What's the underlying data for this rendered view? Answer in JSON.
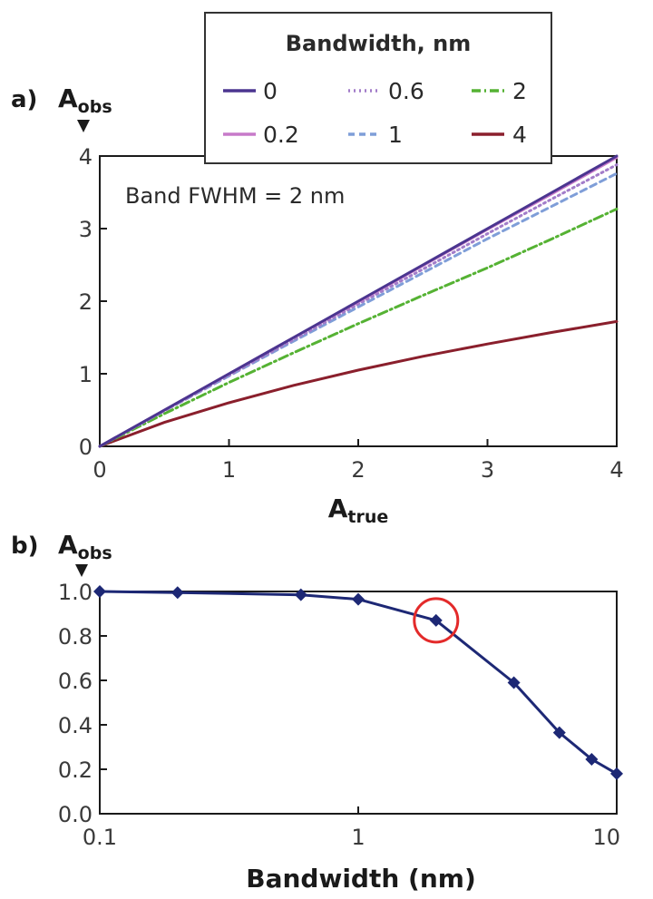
{
  "chart_data": [
    {
      "panel": "a)",
      "type": "line",
      "ylabel_main": "A",
      "ylabel_sub": "obs",
      "xlabel_main": "A",
      "xlabel_sub": "true",
      "xlim": [
        0,
        4
      ],
      "ylim": [
        0,
        4
      ],
      "x_ticks": [
        0,
        1,
        2,
        3,
        4
      ],
      "y_ticks": [
        0,
        1,
        2,
        3,
        4
      ],
      "annotation": "Band FWHM = 2 nm",
      "legend_title": "Bandwidth, nm",
      "grid": false,
      "legend_position": "top-center",
      "x": [
        0,
        0.5,
        1,
        1.5,
        2,
        2.5,
        3,
        3.5,
        4
      ],
      "series": [
        {
          "name": "0",
          "color": "#4b3590",
          "style": "solid",
          "values": [
            0,
            0.5,
            1.0,
            1.5,
            2.0,
            2.5,
            3.0,
            3.5,
            4.0
          ]
        },
        {
          "name": "0.2",
          "color": "#c77ac9",
          "style": "solid",
          "values": [
            0,
            0.5,
            1.0,
            1.5,
            1.99,
            2.49,
            2.99,
            3.48,
            3.98
          ]
        },
        {
          "name": "0.6",
          "color": "#a27cc9",
          "style": "dotted",
          "values": [
            0,
            0.49,
            0.98,
            1.47,
            1.96,
            2.44,
            2.93,
            3.41,
            3.88
          ]
        },
        {
          "name": "1",
          "color": "#7f9ed8",
          "style": "dashed",
          "values": [
            0,
            0.49,
            0.97,
            1.45,
            1.92,
            2.39,
            2.86,
            3.31,
            3.76
          ]
        },
        {
          "name": "2",
          "color": "#55b233",
          "style": "dashdot",
          "values": [
            0,
            0.45,
            0.88,
            1.29,
            1.69,
            2.08,
            2.46,
            2.86,
            3.27
          ]
        },
        {
          "name": "4",
          "color": "#8a1f2c",
          "style": "solid",
          "values": [
            0,
            0.33,
            0.6,
            0.84,
            1.05,
            1.24,
            1.41,
            1.57,
            1.72
          ]
        }
      ]
    },
    {
      "panel": "b)",
      "type": "line",
      "scale_x": "log",
      "ylabel_main": "A",
      "ylabel_sub": "obs",
      "xlabel": "Bandwidth (nm)",
      "xlim": [
        0.1,
        10
      ],
      "ylim": [
        0,
        1.0
      ],
      "x_tick_labels": [
        "0.1",
        "1",
        "10"
      ],
      "y_tick_labels": [
        "0.0",
        "0.2",
        "0.4",
        "0.6",
        "0.8",
        "1.0"
      ],
      "grid": false,
      "series": [
        {
          "color": "#1d2875",
          "marker": "diamond",
          "x": [
            0.1,
            0.2,
            0.6,
            1,
            2,
            4,
            6,
            8,
            10
          ],
          "values": [
            1.0,
            0.995,
            0.985,
            0.965,
            0.87,
            0.59,
            0.365,
            0.245,
            0.18
          ]
        }
      ],
      "highlight": {
        "x": 2,
        "y": 0.87,
        "color": "#e32a2a"
      }
    }
  ]
}
